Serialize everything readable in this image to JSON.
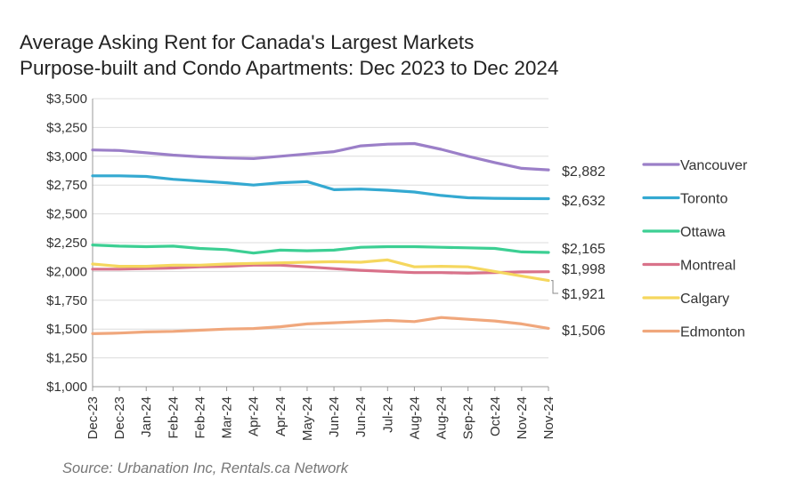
{
  "chart_data": {
    "type": "line",
    "title": "Average Asking Rent for Canada's Largest Markets",
    "subtitle": "Purpose-built and Condo Apartments: Dec 2023 to Dec 2024",
    "source": "Source: Urbanation Inc, Rentals.ca Network",
    "xlabel": "",
    "ylabel": "",
    "categories": [
      "Dec-23",
      "Dec-23",
      "Jan-24",
      "Feb-24",
      "Feb-24",
      "Mar-24",
      "Apr-24",
      "Apr-24",
      "May-24",
      "Jun-24",
      "Jun-24",
      "Jul-24",
      "Aug-24",
      "Aug-24",
      "Sep-24",
      "Oct-24",
      "Nov-24",
      "Nov-24"
    ],
    "ylim": [
      1000,
      3500
    ],
    "yticks": [
      1000,
      1250,
      1500,
      1750,
      2000,
      2250,
      2500,
      2750,
      3000,
      3250,
      3500
    ],
    "ytick_labels": [
      "$1,000",
      "$1,250",
      "$1,500",
      "$1,750",
      "$2,000",
      "$2,250",
      "$2,500",
      "$2,750",
      "$3,000",
      "$3,250",
      "$3,500"
    ],
    "grid": true,
    "legend_position": "right",
    "series": [
      {
        "name": "Vancouver",
        "color": "#9b7fc8",
        "end_label": "$2,882",
        "values": [
          3055,
          3050,
          3030,
          3010,
          2995,
          2985,
          2980,
          3000,
          3020,
          3040,
          3090,
          3105,
          3110,
          3060,
          3000,
          2945,
          2895,
          2882
        ]
      },
      {
        "name": "Toronto",
        "color": "#34a9d1",
        "end_label": "$2,632",
        "values": [
          2830,
          2830,
          2825,
          2800,
          2785,
          2770,
          2750,
          2770,
          2780,
          2710,
          2715,
          2705,
          2690,
          2660,
          2640,
          2635,
          2633,
          2632
        ]
      },
      {
        "name": "Ottawa",
        "color": "#3ccf93",
        "end_label": "$2,165",
        "values": [
          2230,
          2220,
          2215,
          2220,
          2200,
          2190,
          2160,
          2185,
          2180,
          2185,
          2210,
          2215,
          2215,
          2210,
          2205,
          2200,
          2170,
          2165
        ]
      },
      {
        "name": "Montreal",
        "color": "#d9728a",
        "end_label": "$1,998",
        "values": [
          2020,
          2020,
          2025,
          2030,
          2040,
          2045,
          2055,
          2055,
          2040,
          2025,
          2010,
          2000,
          1990,
          1990,
          1985,
          1990,
          1996,
          1998
        ]
      },
      {
        "name": "Calgary",
        "color": "#f5d75e",
        "end_label": "$1,921",
        "values": [
          2065,
          2045,
          2045,
          2055,
          2055,
          2065,
          2070,
          2075,
          2080,
          2085,
          2080,
          2100,
          2040,
          2045,
          2040,
          2000,
          1960,
          1921
        ]
      },
      {
        "name": "Edmonton",
        "color": "#f0a77c",
        "end_label": "$1,506",
        "values": [
          1460,
          1465,
          1475,
          1480,
          1490,
          1500,
          1505,
          1520,
          1545,
          1555,
          1565,
          1575,
          1565,
          1600,
          1585,
          1570,
          1545,
          1506
        ]
      }
    ]
  }
}
